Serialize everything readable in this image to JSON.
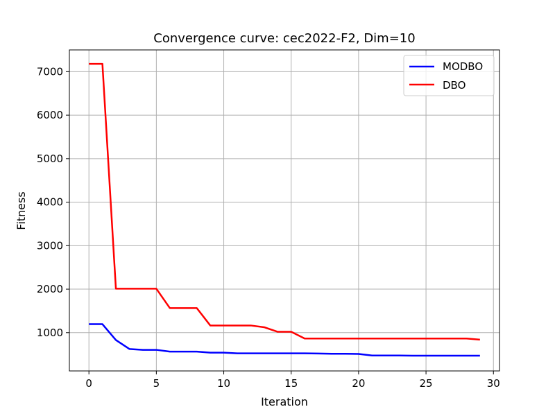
{
  "chart_data": {
    "type": "line",
    "title": "Convergence curve:  cec2022-F2, Dim=10",
    "xlabel": "Iteration",
    "ylabel": "Fitness",
    "xlim": [
      -1.45,
      30.45
    ],
    "ylim": [
      120,
      7500
    ],
    "xticks": [
      0,
      5,
      10,
      15,
      20,
      25,
      30
    ],
    "yticks": [
      1000,
      2000,
      3000,
      4000,
      5000,
      6000,
      7000
    ],
    "grid": true,
    "legend_position": "top-right",
    "x": [
      0,
      1,
      2,
      3,
      4,
      5,
      6,
      7,
      8,
      9,
      10,
      11,
      12,
      13,
      14,
      15,
      16,
      17,
      18,
      19,
      20,
      21,
      22,
      23,
      24,
      25,
      26,
      27,
      28,
      29
    ],
    "series": [
      {
        "name": "MODBO",
        "color": "#0000ff",
        "values": [
          1195,
          1195,
          830,
          625,
          605,
          605,
          565,
          565,
          565,
          540,
          540,
          525,
          525,
          525,
          525,
          525,
          525,
          520,
          515,
          515,
          510,
          475,
          475,
          475,
          470,
          470,
          470,
          470,
          470,
          470
        ]
      },
      {
        "name": "DBO",
        "color": "#ff0000",
        "values": [
          7180,
          7180,
          2010,
          2010,
          2010,
          2010,
          1565,
          1565,
          1565,
          1165,
          1165,
          1165,
          1165,
          1125,
          1020,
          1020,
          865,
          865,
          865,
          865,
          865,
          865,
          865,
          865,
          865,
          865,
          865,
          865,
          865,
          840
        ]
      }
    ]
  }
}
